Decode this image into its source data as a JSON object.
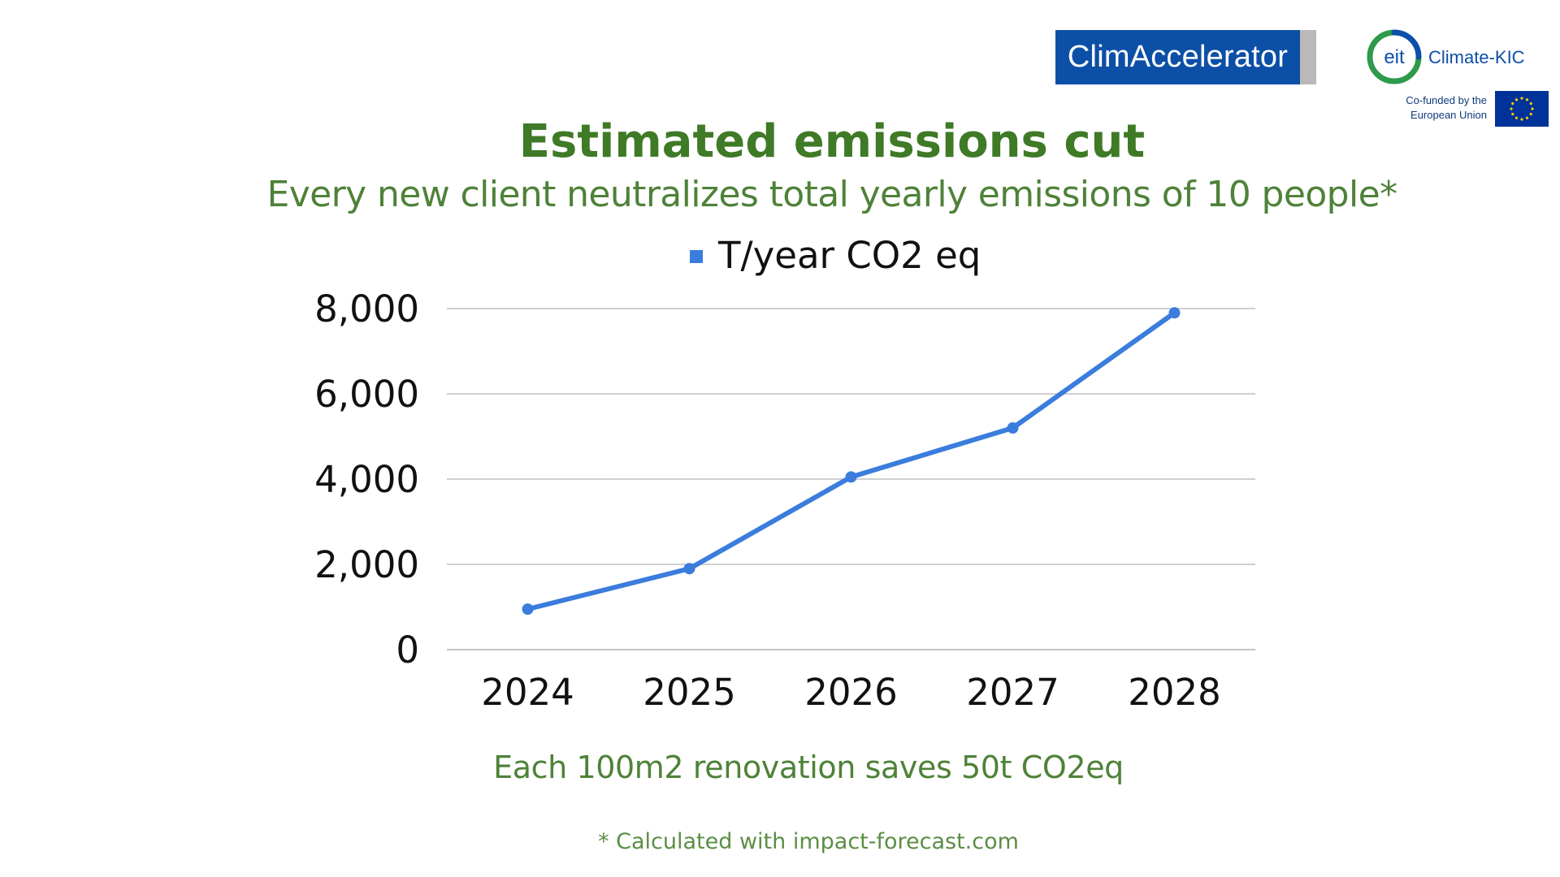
{
  "logos": {
    "climaccelerator": "ClimAccelerator",
    "eit_mark": "eit",
    "eit_name": "Climate-KIC",
    "eu_line1": "Co-funded by the",
    "eu_line2": "European Union",
    "brand_blue": "#0c4fa7",
    "eu_flag_blue": "#003399",
    "eu_star_yellow": "#ffcc00",
    "eit_ring_green": "#2e9a4a"
  },
  "header": {
    "title": "Estimated emissions cut",
    "subtitle": "Every new client neutralizes total yearly emissions of 10 people*"
  },
  "chart_data": {
    "type": "line",
    "x": [
      "2024",
      "2025",
      "2026",
      "2027",
      "2028"
    ],
    "series": [
      {
        "name": "T/year CO2 eq",
        "values": [
          950,
          1900,
          4050,
          5200,
          7900
        ],
        "color": "#3b7ddd"
      }
    ],
    "ylim": [
      0,
      8000
    ],
    "yticks": [
      0,
      2000,
      4000,
      6000,
      8000
    ],
    "ytick_labels": [
      "0",
      "2,000",
      "4,000",
      "6,000",
      "8,000"
    ],
    "grid": true,
    "legend_position": "top",
    "title_color": "#3f7a26",
    "gridline_color": "#d0d0d0"
  },
  "notes": {
    "renovation": "Each 100m2 renovation saves 50t CO2eq",
    "footnote": "* Calculated with impact-forecast.com"
  }
}
